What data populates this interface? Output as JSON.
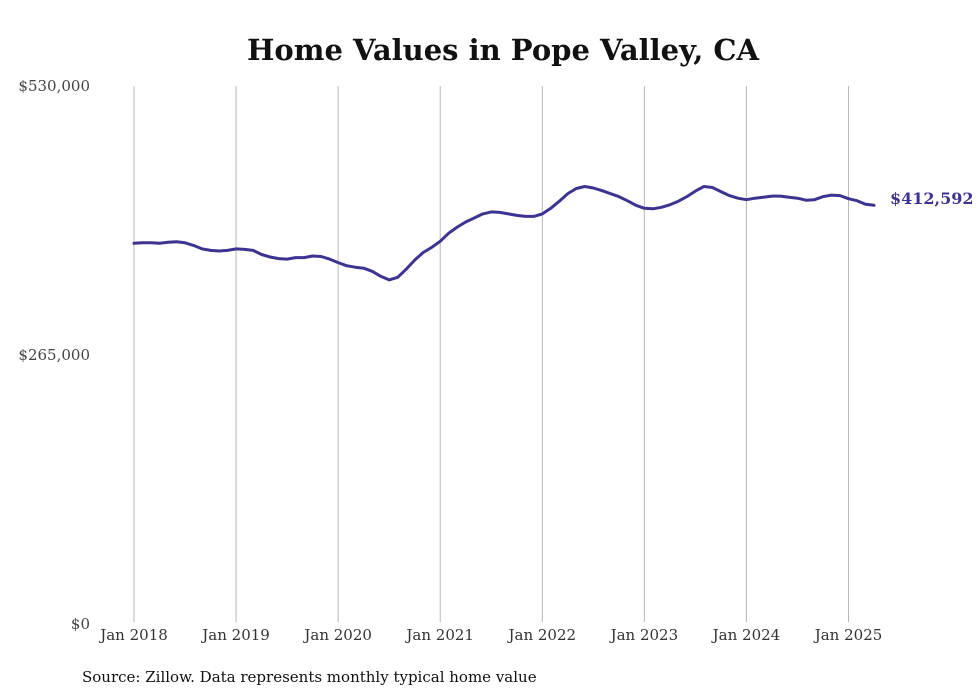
{
  "chart_data": {
    "type": "line",
    "title": "Home Values in Pope Valley, CA",
    "xlabel": "",
    "ylabel": "",
    "xlim": [
      "2018-01",
      "2025-04"
    ],
    "ylim": [
      0,
      530000
    ],
    "y_ticks": [
      {
        "value": 0,
        "label": "$0"
      },
      {
        "value": 265000,
        "label": "$265,000"
      },
      {
        "value": 530000,
        "label": "$530,000"
      }
    ],
    "x_ticks": [
      {
        "x": "2018-01",
        "label": "Jan 2018"
      },
      {
        "x": "2019-01",
        "label": "Jan 2019"
      },
      {
        "x": "2020-01",
        "label": "Jan 2020"
      },
      {
        "x": "2021-01",
        "label": "Jan 2021"
      },
      {
        "x": "2022-01",
        "label": "Jan 2022"
      },
      {
        "x": "2023-01",
        "label": "Jan 2023"
      },
      {
        "x": "2024-01",
        "label": "Jan 2024"
      },
      {
        "x": "2025-01",
        "label": "Jan 2025"
      }
    ],
    "grid": {
      "vertical": true,
      "horizontal": false
    },
    "line_color": "#3d3391",
    "end_label": "$412,592",
    "series": [
      {
        "x": [
          "2018-01",
          "2018-02",
          "2018-03",
          "2018-04",
          "2018-05",
          "2018-06",
          "2018-07",
          "2018-08",
          "2018-09",
          "2018-10",
          "2018-11",
          "2018-12",
          "2019-01",
          "2019-02",
          "2019-03",
          "2019-04",
          "2019-05",
          "2019-06",
          "2019-07",
          "2019-08",
          "2019-09",
          "2019-10",
          "2019-11",
          "2019-12",
          "2020-01",
          "2020-02",
          "2020-03",
          "2020-04",
          "2020-05",
          "2020-06",
          "2020-07",
          "2020-08",
          "2020-09",
          "2020-10",
          "2020-11",
          "2020-12",
          "2021-01",
          "2021-02",
          "2021-03",
          "2021-04",
          "2021-05",
          "2021-06",
          "2021-07",
          "2021-08",
          "2021-09",
          "2021-10",
          "2021-11",
          "2021-12",
          "2022-01",
          "2022-02",
          "2022-03",
          "2022-04",
          "2022-05",
          "2022-06",
          "2022-07",
          "2022-08",
          "2022-09",
          "2022-10",
          "2022-11",
          "2022-12",
          "2023-01",
          "2023-02",
          "2023-03",
          "2023-04",
          "2023-05",
          "2023-06",
          "2023-07",
          "2023-08",
          "2023-09",
          "2023-10",
          "2023-11",
          "2023-12",
          "2024-01",
          "2024-02",
          "2024-03",
          "2024-04",
          "2024-05",
          "2024-06",
          "2024-07",
          "2024-08",
          "2024-09",
          "2024-10",
          "2024-11",
          "2024-12",
          "2025-01",
          "2025-02",
          "2025-03",
          "2025-04"
        ],
        "values": [
          375000,
          375500,
          375500,
          375000,
          376000,
          376500,
          375500,
          373000,
          369500,
          368000,
          367500,
          368000,
          369500,
          369000,
          368000,
          364000,
          361500,
          360000,
          359500,
          361000,
          361000,
          362500,
          362000,
          359500,
          356000,
          353000,
          351500,
          350500,
          347500,
          342500,
          339000,
          341500,
          349500,
          358500,
          366000,
          371000,
          377000,
          385000,
          391000,
          396000,
          400000,
          404000,
          406000,
          405500,
          404000,
          402500,
          401500,
          401500,
          404000,
          409500,
          416500,
          424000,
          429000,
          431000,
          429500,
          427000,
          424000,
          421000,
          417000,
          412500,
          409500,
          409000,
          410500,
          413000,
          416500,
          421000,
          426500,
          431000,
          430000,
          426000,
          422000,
          419500,
          418000,
          419500,
          420500,
          421500,
          421500,
          420500,
          419500,
          417500,
          418000,
          421000,
          422500,
          422000,
          419000,
          417000,
          413500,
          412592
        ]
      }
    ]
  },
  "footer": {
    "source": "Source: Zillow. Data represents monthly typical home value"
  }
}
